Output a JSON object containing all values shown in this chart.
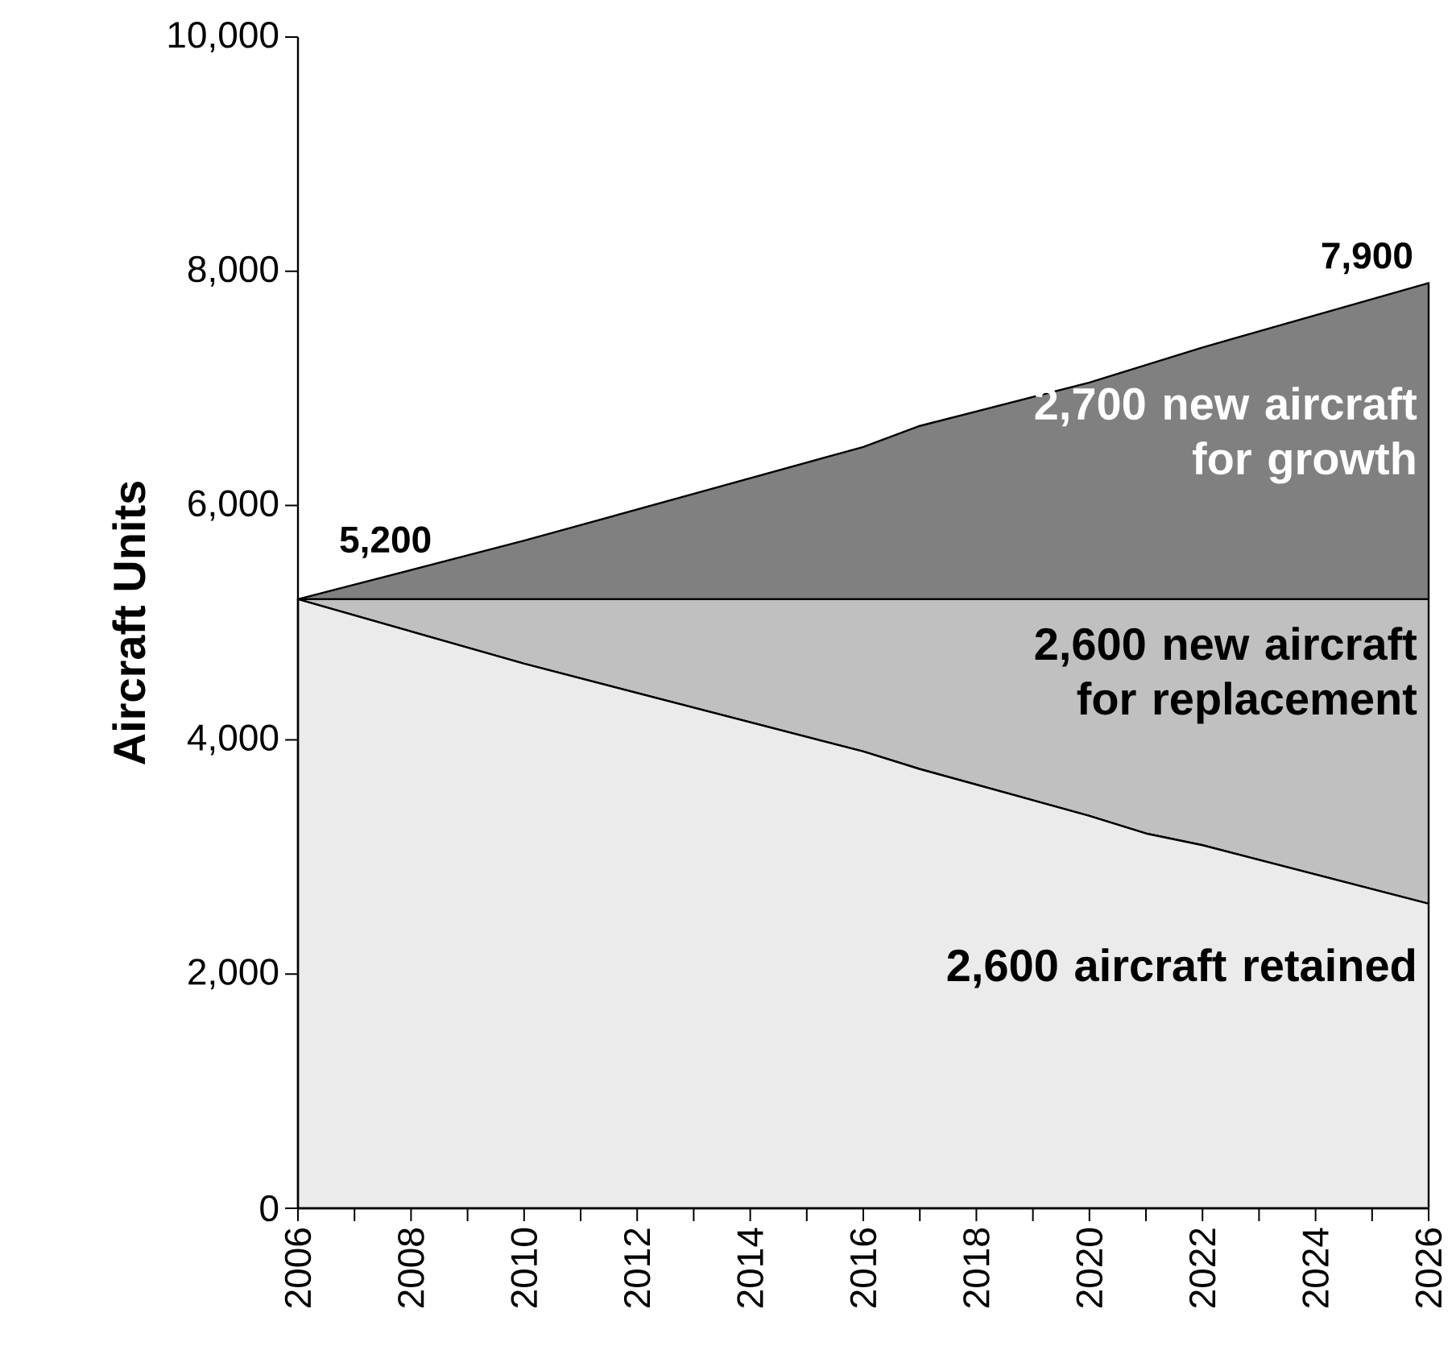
{
  "chart_data": {
    "type": "area",
    "stacked": true,
    "ylabel": "Aircraft Units",
    "x": [
      2006,
      2010,
      2016,
      2017,
      2020,
      2021,
      2022,
      2026
    ],
    "series": [
      {
        "color": "#ebebeb",
        "values": [
          5200,
          4650,
          3900,
          3750,
          3350,
          3200,
          3100,
          2600
        ]
      },
      {
        "color": "#c0c0c0",
        "values": [
          0,
          550,
          1300,
          1450,
          1850,
          2000,
          2100,
          2600
        ]
      },
      {
        "color": "#808080",
        "values": [
          0,
          500,
          1300,
          1480,
          1850,
          2000,
          2150,
          2700
        ]
      }
    ],
    "xlim": [
      2006,
      2026
    ],
    "xticks": [
      2006,
      2008,
      2010,
      2012,
      2014,
      2016,
      2018,
      2020,
      2022,
      2024,
      2026
    ],
    "ylim": [
      0,
      10000
    ],
    "yticks": [
      0,
      {
        "value": 2000,
        "label": "2,000"
      },
      {
        "value": 4000,
        "label": "4,000"
      },
      {
        "value": 6000,
        "label": "6,000"
      },
      {
        "value": 8000,
        "label": "8,000"
      },
      {
        "value": 10000,
        "label": "10,000"
      }
    ],
    "annotations": [
      {
        "text": "5,200",
        "x": 2006,
        "y": 5200
      },
      {
        "text": "7,900",
        "x": 2026,
        "y": 7900
      },
      "2,700 new aircraft for growth",
      "2,600 new aircraft for replacement",
      "2,600 aircraft retained"
    ],
    "grid": false
  }
}
